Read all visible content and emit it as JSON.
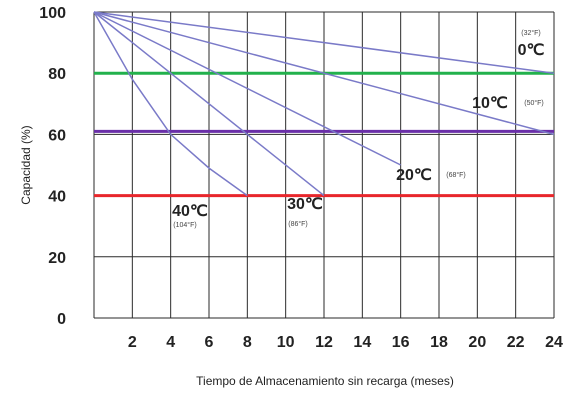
{
  "chart_data": {
    "type": "line",
    "xlabel": "Tiempo de Almacenamiento sin recarga (meses)",
    "ylabel": "Capacidad (%)",
    "xlim": [
      0,
      24
    ],
    "ylim": [
      0,
      100
    ],
    "x_ticks": [
      "2",
      "4",
      "6",
      "8",
      "10",
      "12",
      "14",
      "16",
      "18",
      "20",
      "22",
      "24"
    ],
    "y_ticks": [
      "0",
      "20",
      "40",
      "60",
      "80",
      "100"
    ],
    "grid": true,
    "series": [
      {
        "name": "0℃",
        "sub": "(32°F)",
        "color": "#7a7ac8",
        "x": [
          0,
          24
        ],
        "y": [
          100,
          80
        ]
      },
      {
        "name": "10℃",
        "sub": "(50°F)",
        "color": "#7a7ac8",
        "x": [
          0,
          24
        ],
        "y": [
          100,
          60
        ]
      },
      {
        "name": "20℃",
        "sub": "(68°F)",
        "color": "#7a7ac8",
        "x": [
          0,
          16
        ],
        "y": [
          100,
          50
        ]
      },
      {
        "name": "30℃",
        "sub": "(86°F)",
        "color": "#7a7ac8",
        "x": [
          0,
          12
        ],
        "y": [
          100,
          40
        ]
      },
      {
        "name": "40℃",
        "sub": "(104°F)",
        "color": "#7a7ac8",
        "x": [
          0,
          2,
          4,
          6,
          8
        ],
        "y": [
          100,
          78,
          60,
          49,
          40
        ]
      }
    ],
    "reference_lines": [
      {
        "y": 80,
        "color": "#22b14c"
      },
      {
        "y": 61,
        "color": "#6a2fa8"
      },
      {
        "y": 40,
        "color": "#e8262b"
      }
    ]
  }
}
